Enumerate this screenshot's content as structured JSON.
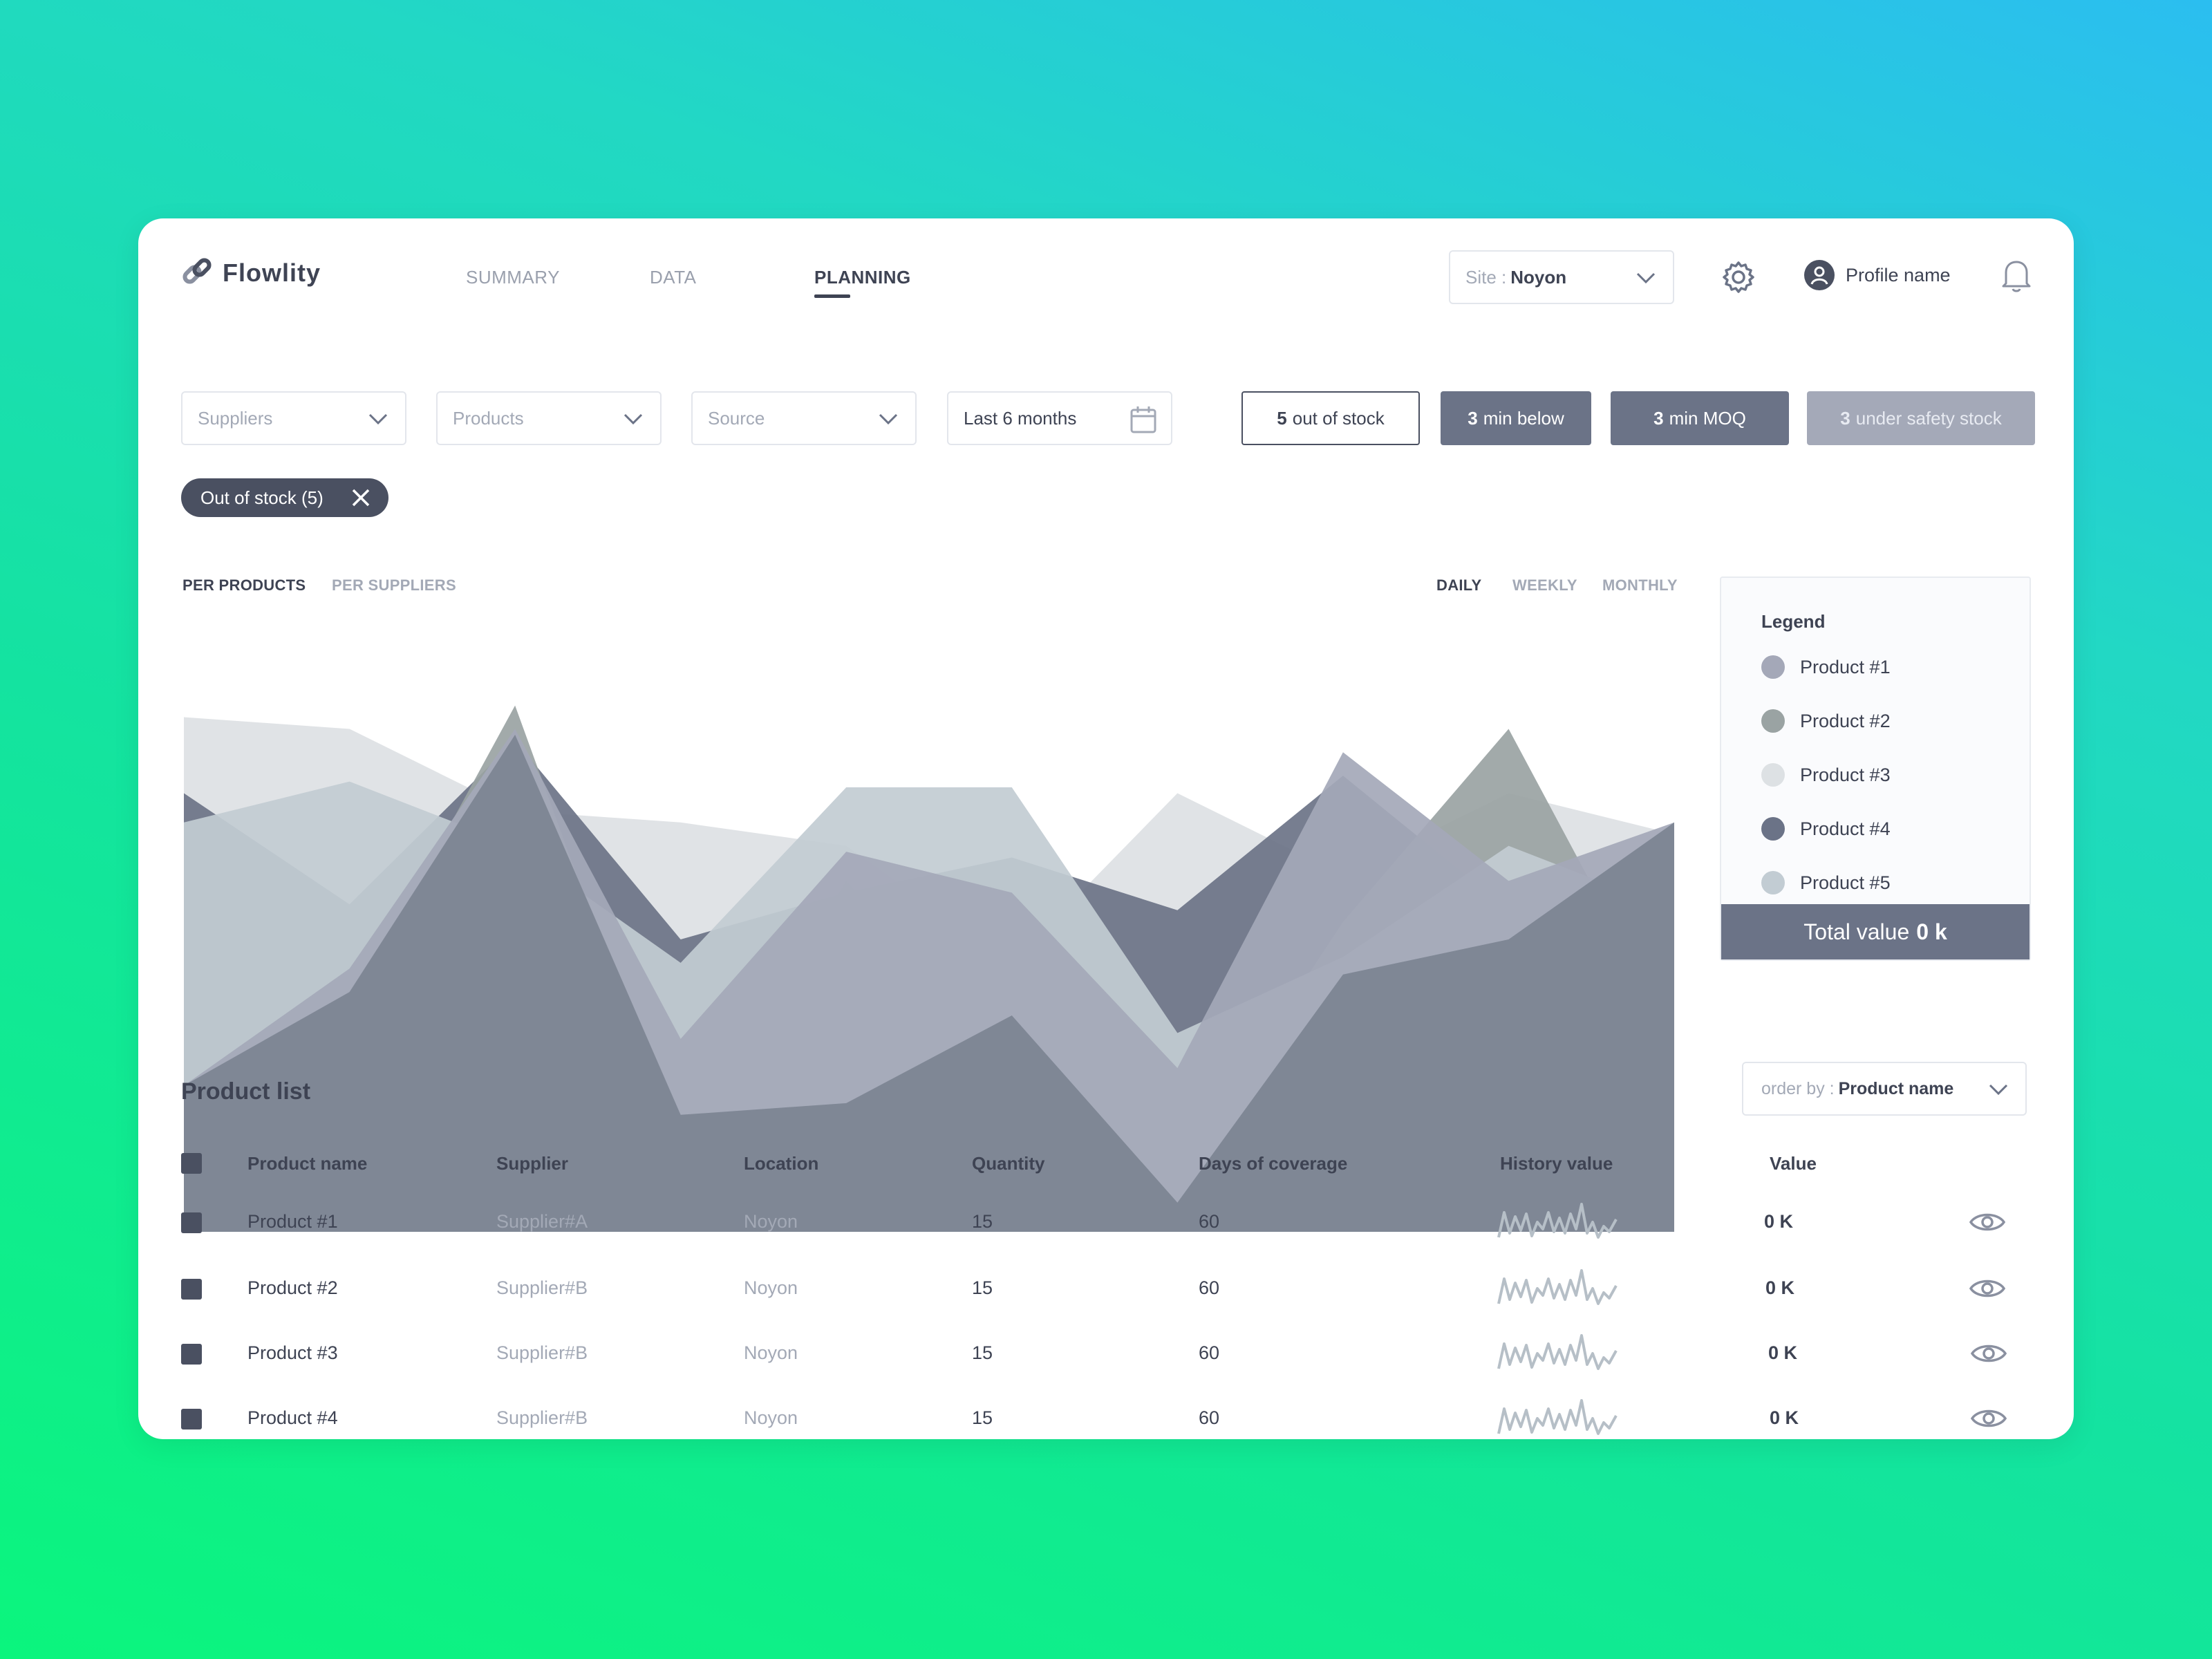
{
  "app": {
    "name": "Flowlity"
  },
  "nav": {
    "items": [
      {
        "label": "SUMMARY"
      },
      {
        "label": "DATA"
      },
      {
        "label": "PLANNING"
      }
    ],
    "active": "PLANNING"
  },
  "header": {
    "site_prefix": "Site : ",
    "site_value": "Noyon",
    "profile_name": "Profile name"
  },
  "filters": {
    "suppliers_placeholder": "Suppliers",
    "products_placeholder": "Products",
    "source_placeholder": "Source",
    "date_range": "Last 6 months"
  },
  "stats": [
    {
      "count": "5",
      "label": "out of stock"
    },
    {
      "count": "3",
      "label": "min below"
    },
    {
      "count": "3",
      "label": "min MOQ"
    },
    {
      "count": "3",
      "label": "under safety stock"
    }
  ],
  "active_filter_chip": "Out of stock (5)",
  "chart_tabs": {
    "group": [
      "PER PRODUCTS",
      "PER SUPPLIERS"
    ],
    "period": [
      "DAILY",
      "WEEKLY",
      "MONTHLY"
    ]
  },
  "legend": {
    "title": "Legend",
    "items": [
      {
        "label": "Product #1",
        "color": "#a4a8b8"
      },
      {
        "label": "Product #2",
        "color": "#9aa3a3"
      },
      {
        "label": "Product #3",
        "color": "#dde1e4"
      },
      {
        "label": "Product #4",
        "color": "#6b7387"
      },
      {
        "label": "Product #5",
        "color": "#c2ccd3"
      }
    ],
    "total_prefix": "Total value",
    "total_value": "0 k"
  },
  "chart_data": {
    "type": "area",
    "x": [
      0,
      1,
      2,
      3,
      4,
      5,
      6,
      7,
      8,
      9
    ],
    "series": [
      {
        "name": "Product #3",
        "color": "#dde1e4",
        "values": [
          88,
          86,
          72,
          70,
          66,
          46,
          75,
          61,
          75,
          68
        ]
      },
      {
        "name": "Product #4",
        "color": "#6b7387",
        "values": [
          75,
          56,
          84,
          50,
          58,
          64,
          55,
          78,
          55,
          46
        ]
      },
      {
        "name": "Product #2",
        "color": "#9aa3a3",
        "values": [
          10,
          38,
          90,
          12,
          60,
          28,
          10,
          53,
          86,
          33
        ]
      },
      {
        "name": "Product #5",
        "color": "#c2ccd3",
        "values": [
          70,
          77,
          66,
          46,
          76,
          76,
          34,
          47,
          66,
          55
        ]
      },
      {
        "name": "Product #1",
        "color": "#a4a8b8",
        "values": [
          25,
          45,
          86,
          33,
          65,
          58,
          28,
          82,
          60,
          70
        ]
      },
      {
        "name": "Product #1",
        "color": "#7f8795",
        "values": [
          25,
          41,
          85,
          20,
          22,
          37,
          5,
          44,
          50,
          70
        ]
      }
    ],
    "ylim": [
      0,
      100
    ]
  },
  "product_list": {
    "title": "Product list",
    "order_prefix": "order by : ",
    "order_value": "Product name",
    "columns": [
      "Product name",
      "Supplier",
      "Location",
      "Quantity",
      "Days of coverage",
      "History value",
      "Value"
    ],
    "rows": [
      {
        "name": "Product #1",
        "supplier": "Supplier#A",
        "location": "Noyon",
        "quantity": "15",
        "coverage": "60",
        "value": "0 K"
      },
      {
        "name": "Product #2",
        "supplier": "Supplier#B",
        "location": "Noyon",
        "quantity": "15",
        "coverage": "60",
        "value": "0 K"
      },
      {
        "name": "Product #3",
        "supplier": "Supplier#B",
        "location": "Noyon",
        "quantity": "15",
        "coverage": "60",
        "value": "0 K"
      },
      {
        "name": "Product #4",
        "supplier": "Supplier#B",
        "location": "Noyon",
        "quantity": "15",
        "coverage": "60",
        "value": "0 K"
      }
    ]
  }
}
